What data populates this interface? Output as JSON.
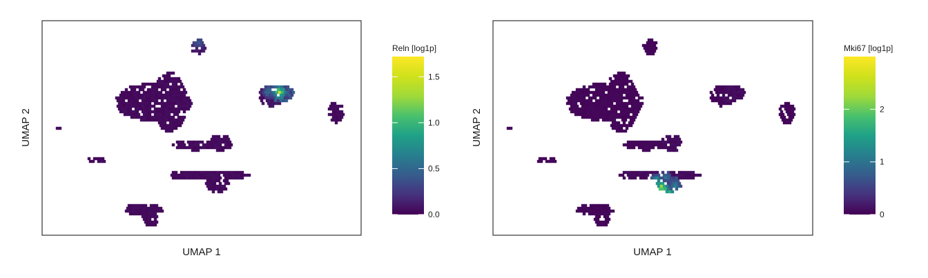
{
  "chart_data": [
    {
      "type": "heatmap",
      "subtype": "hexbin-umap",
      "xlabel": "UMAP 1",
      "ylabel": "UMAP 2",
      "color_scale": "viridis",
      "legend": {
        "title": "Reln [log1p]",
        "placement": "right",
        "range": [
          0,
          1.72
        ],
        "ticks": [
          0.0,
          0.5,
          1.0,
          1.5
        ],
        "tick_labels": [
          "0.0",
          "0.5",
          "1.0",
          "1.5"
        ]
      },
      "clusters": [
        {
          "cx": 0.49,
          "cy": 0.88,
          "rx": 0.022,
          "ry": 0.04,
          "value": 0.1
        },
        {
          "cx": 0.35,
          "cy": 0.62,
          "rx": 0.12,
          "ry": 0.09,
          "value": 0.05
        },
        {
          "cx": 0.4,
          "cy": 0.62,
          "rx": 0.055,
          "ry": 0.14,
          "value": 0.05
        },
        {
          "cx": 0.72,
          "cy": 0.65,
          "rx": 0.04,
          "ry": 0.05,
          "value": 0.1
        },
        {
          "cx": 0.75,
          "cy": 0.66,
          "rx": 0.04,
          "ry": 0.04,
          "value": 0.45
        },
        {
          "cx": 0.92,
          "cy": 0.57,
          "rx": 0.025,
          "ry": 0.05,
          "value": 0.05
        },
        {
          "cx": 0.48,
          "cy": 0.42,
          "rx": 0.07,
          "ry": 0.025,
          "value": 0.05
        },
        {
          "cx": 0.56,
          "cy": 0.43,
          "rx": 0.035,
          "ry": 0.04,
          "value": 0.05
        },
        {
          "cx": 0.17,
          "cy": 0.35,
          "rx": 0.03,
          "ry": 0.015,
          "value": 0.05
        },
        {
          "cx": 0.52,
          "cy": 0.28,
          "rx": 0.13,
          "ry": 0.025,
          "value": 0.05
        },
        {
          "cx": 0.55,
          "cy": 0.24,
          "rx": 0.04,
          "ry": 0.04,
          "value": 0.05
        },
        {
          "cx": 0.32,
          "cy": 0.12,
          "rx": 0.06,
          "ry": 0.03,
          "value": 0.05
        },
        {
          "cx": 0.34,
          "cy": 0.08,
          "rx": 0.025,
          "ry": 0.04,
          "value": 0.05
        },
        {
          "cx": 0.05,
          "cy": 0.5,
          "rx": 0.01,
          "ry": 0.01,
          "value": 0.05
        }
      ],
      "hotspots": [
        {
          "cx": 0.745,
          "cy": 0.665,
          "value": 1.55
        },
        {
          "cx": 0.71,
          "cy": 0.67,
          "value": 0.7
        },
        {
          "cx": 0.49,
          "cy": 0.9,
          "value": 0.55
        }
      ]
    },
    {
      "type": "heatmap",
      "subtype": "hexbin-umap",
      "xlabel": "UMAP 1",
      "ylabel": "UMAP 2",
      "color_scale": "viridis",
      "legend": {
        "title": "Mki67 [log1p]",
        "placement": "right",
        "range": [
          0,
          3.0
        ],
        "ticks": [
          0,
          1,
          2
        ],
        "tick_labels": [
          "0",
          "1",
          "2"
        ]
      },
      "clusters": [
        {
          "cx": 0.49,
          "cy": 0.88,
          "rx": 0.022,
          "ry": 0.04,
          "value": 0.05
        },
        {
          "cx": 0.35,
          "cy": 0.62,
          "rx": 0.12,
          "ry": 0.09,
          "value": 0.05
        },
        {
          "cx": 0.4,
          "cy": 0.62,
          "rx": 0.055,
          "ry": 0.14,
          "value": 0.05
        },
        {
          "cx": 0.72,
          "cy": 0.65,
          "rx": 0.04,
          "ry": 0.05,
          "value": 0.05
        },
        {
          "cx": 0.75,
          "cy": 0.66,
          "rx": 0.04,
          "ry": 0.04,
          "value": 0.1
        },
        {
          "cx": 0.92,
          "cy": 0.57,
          "rx": 0.025,
          "ry": 0.05,
          "value": 0.05
        },
        {
          "cx": 0.48,
          "cy": 0.42,
          "rx": 0.07,
          "ry": 0.025,
          "value": 0.05
        },
        {
          "cx": 0.56,
          "cy": 0.43,
          "rx": 0.035,
          "ry": 0.04,
          "value": 0.1
        },
        {
          "cx": 0.17,
          "cy": 0.35,
          "rx": 0.03,
          "ry": 0.015,
          "value": 0.05
        },
        {
          "cx": 0.52,
          "cy": 0.28,
          "rx": 0.13,
          "ry": 0.025,
          "value": 0.1
        },
        {
          "cx": 0.55,
          "cy": 0.24,
          "rx": 0.04,
          "ry": 0.04,
          "value": 0.6
        },
        {
          "cx": 0.32,
          "cy": 0.12,
          "rx": 0.06,
          "ry": 0.03,
          "value": 0.05
        },
        {
          "cx": 0.34,
          "cy": 0.08,
          "rx": 0.025,
          "ry": 0.04,
          "value": 0.05
        },
        {
          "cx": 0.05,
          "cy": 0.5,
          "rx": 0.01,
          "ry": 0.01,
          "value": 0.05
        }
      ],
      "hotspots": [
        {
          "cx": 0.53,
          "cy": 0.22,
          "value": 2.9
        },
        {
          "cx": 0.55,
          "cy": 0.19,
          "value": 2.3
        },
        {
          "cx": 0.51,
          "cy": 0.25,
          "value": 2.0
        },
        {
          "cx": 0.57,
          "cy": 0.23,
          "value": 1.6
        },
        {
          "cx": 0.54,
          "cy": 0.27,
          "value": 1.2
        }
      ]
    }
  ]
}
